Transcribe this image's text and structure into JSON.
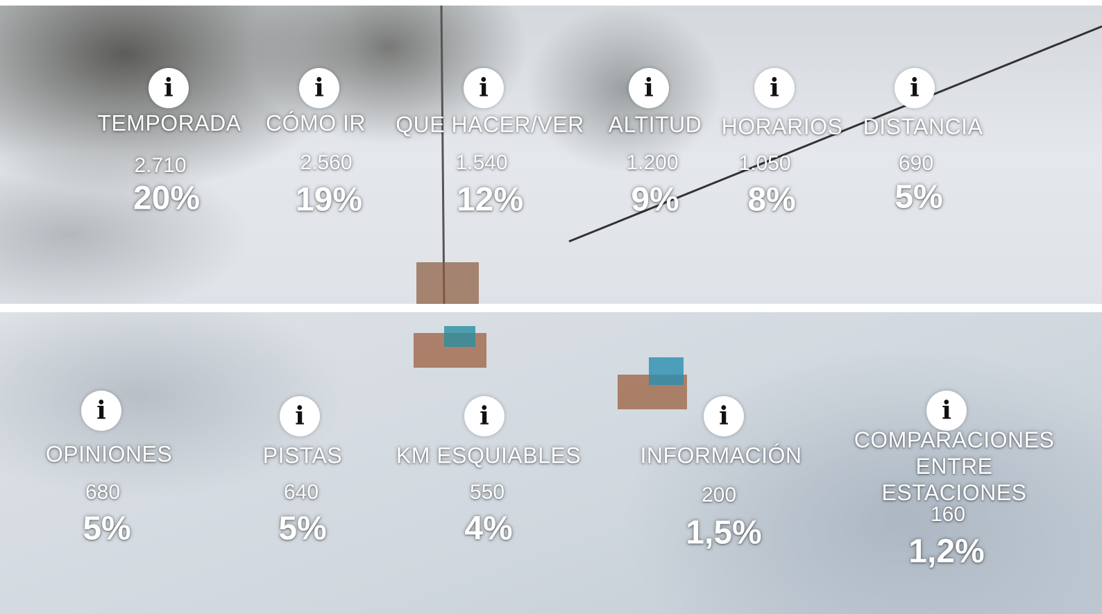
{
  "rows": [
    {
      "items": [
        {
          "label": "TEMPORADA",
          "count": "2.710",
          "percent": "20%"
        },
        {
          "label": "CÓMO IR",
          "count": "2.560",
          "percent": "19%"
        },
        {
          "label": "QUE HACER/VER",
          "count": "1.540",
          "percent": "12%"
        },
        {
          "label": "ALTITUD",
          "count": "1.200",
          "percent": "9%"
        },
        {
          "label": "HORARIOS",
          "count": "1.050",
          "percent": "8%"
        },
        {
          "label": "DISTANCIA",
          "count": "690",
          "percent": "5%"
        }
      ]
    },
    {
      "items": [
        {
          "label": "OPINIONES",
          "count": "680",
          "percent": "5%"
        },
        {
          "label": "PISTAS",
          "count": "640",
          "percent": "5%"
        },
        {
          "label": "KM ESQUIABLES",
          "count": "550",
          "percent": "4%"
        },
        {
          "label": "INFORMACIÓN",
          "count": "200",
          "percent": "1,5%"
        },
        {
          "label": "COMPARACIONES ENTRE ESTACIONES",
          "count": "160",
          "percent": "1,2%"
        }
      ]
    }
  ]
}
